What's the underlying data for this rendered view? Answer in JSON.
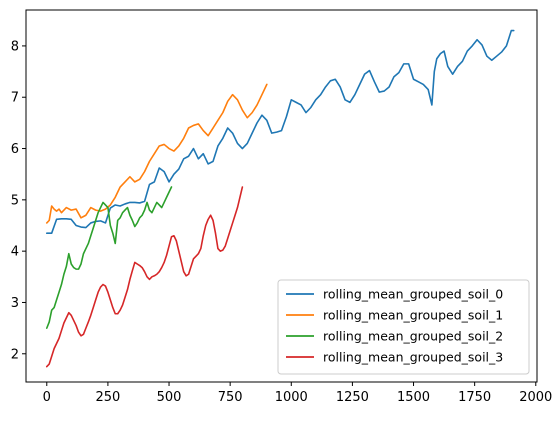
{
  "chart_data": {
    "type": "line",
    "title": "",
    "xlabel": "",
    "ylabel": "",
    "xlim": [
      -85,
      2005
    ],
    "ylim": [
      1.45,
      8.7
    ],
    "xticks": [
      0,
      250,
      500,
      750,
      1000,
      1250,
      1500,
      1750,
      2000
    ],
    "yticks": [
      2,
      3,
      4,
      5,
      6,
      7,
      8
    ],
    "grid": false,
    "legend_position": "lower-right",
    "series": [
      {
        "name": "rolling_mean_grouped_soil_0",
        "color": "#1f77b4",
        "points": [
          [
            0,
            4.35
          ],
          [
            20,
            4.35
          ],
          [
            40,
            4.62
          ],
          [
            60,
            4.63
          ],
          [
            80,
            4.63
          ],
          [
            100,
            4.62
          ],
          [
            120,
            4.5
          ],
          [
            140,
            4.47
          ],
          [
            160,
            4.46
          ],
          [
            180,
            4.55
          ],
          [
            200,
            4.58
          ],
          [
            220,
            4.59
          ],
          [
            240,
            4.55
          ],
          [
            260,
            4.84
          ],
          [
            280,
            4.9
          ],
          [
            300,
            4.88
          ],
          [
            320,
            4.92
          ],
          [
            340,
            4.95
          ],
          [
            360,
            4.95
          ],
          [
            380,
            4.94
          ],
          [
            400,
            4.97
          ],
          [
            420,
            5.3
          ],
          [
            440,
            5.35
          ],
          [
            460,
            5.62
          ],
          [
            480,
            5.55
          ],
          [
            500,
            5.35
          ],
          [
            520,
            5.5
          ],
          [
            540,
            5.6
          ],
          [
            560,
            5.8
          ],
          [
            580,
            5.85
          ],
          [
            600,
            6.0
          ],
          [
            620,
            5.8
          ],
          [
            640,
            5.9
          ],
          [
            660,
            5.7
          ],
          [
            680,
            5.75
          ],
          [
            700,
            6.05
          ],
          [
            720,
            6.2
          ],
          [
            740,
            6.4
          ],
          [
            760,
            6.3
          ],
          [
            780,
            6.1
          ],
          [
            800,
            6.0
          ],
          [
            820,
            6.1
          ],
          [
            840,
            6.3
          ],
          [
            860,
            6.5
          ],
          [
            880,
            6.65
          ],
          [
            900,
            6.55
          ],
          [
            920,
            6.3
          ],
          [
            940,
            6.32
          ],
          [
            960,
            6.35
          ],
          [
            980,
            6.62
          ],
          [
            1000,
            6.95
          ],
          [
            1020,
            6.9
          ],
          [
            1040,
            6.85
          ],
          [
            1060,
            6.7
          ],
          [
            1080,
            6.8
          ],
          [
            1100,
            6.95
          ],
          [
            1120,
            7.05
          ],
          [
            1140,
            7.2
          ],
          [
            1160,
            7.32
          ],
          [
            1180,
            7.35
          ],
          [
            1200,
            7.2
          ],
          [
            1220,
            6.95
          ],
          [
            1240,
            6.9
          ],
          [
            1260,
            7.05
          ],
          [
            1280,
            7.25
          ],
          [
            1300,
            7.45
          ],
          [
            1320,
            7.52
          ],
          [
            1340,
            7.3
          ],
          [
            1360,
            7.1
          ],
          [
            1380,
            7.12
          ],
          [
            1400,
            7.2
          ],
          [
            1420,
            7.4
          ],
          [
            1440,
            7.48
          ],
          [
            1460,
            7.65
          ],
          [
            1480,
            7.65
          ],
          [
            1500,
            7.35
          ],
          [
            1520,
            7.3
          ],
          [
            1540,
            7.25
          ],
          [
            1560,
            7.15
          ],
          [
            1575,
            6.85
          ],
          [
            1585,
            7.5
          ],
          [
            1595,
            7.75
          ],
          [
            1610,
            7.85
          ],
          [
            1625,
            7.9
          ],
          [
            1640,
            7.6
          ],
          [
            1660,
            7.45
          ],
          [
            1680,
            7.6
          ],
          [
            1700,
            7.7
          ],
          [
            1720,
            7.9
          ],
          [
            1740,
            8.0
          ],
          [
            1760,
            8.12
          ],
          [
            1780,
            8.02
          ],
          [
            1800,
            7.8
          ],
          [
            1820,
            7.72
          ],
          [
            1840,
            7.8
          ],
          [
            1860,
            7.88
          ],
          [
            1880,
            8.0
          ],
          [
            1900,
            8.3
          ],
          [
            1910,
            8.3
          ]
        ]
      },
      {
        "name": "rolling_mean_grouped_soil_1",
        "color": "#ff7f0e",
        "points": [
          [
            0,
            4.55
          ],
          [
            10,
            4.6
          ],
          [
            20,
            4.88
          ],
          [
            30,
            4.82
          ],
          [
            40,
            4.78
          ],
          [
            50,
            4.82
          ],
          [
            60,
            4.75
          ],
          [
            80,
            4.85
          ],
          [
            100,
            4.8
          ],
          [
            120,
            4.82
          ],
          [
            140,
            4.65
          ],
          [
            160,
            4.7
          ],
          [
            180,
            4.85
          ],
          [
            200,
            4.8
          ],
          [
            220,
            4.78
          ],
          [
            240,
            4.82
          ],
          [
            260,
            4.9
          ],
          [
            280,
            5.05
          ],
          [
            300,
            5.25
          ],
          [
            320,
            5.35
          ],
          [
            340,
            5.45
          ],
          [
            360,
            5.35
          ],
          [
            380,
            5.4
          ],
          [
            400,
            5.55
          ],
          [
            420,
            5.75
          ],
          [
            440,
            5.9
          ],
          [
            460,
            6.05
          ],
          [
            480,
            6.08
          ],
          [
            500,
            6.0
          ],
          [
            520,
            5.95
          ],
          [
            540,
            6.05
          ],
          [
            560,
            6.2
          ],
          [
            580,
            6.4
          ],
          [
            600,
            6.45
          ],
          [
            620,
            6.48
          ],
          [
            640,
            6.35
          ],
          [
            660,
            6.25
          ],
          [
            680,
            6.4
          ],
          [
            700,
            6.55
          ],
          [
            720,
            6.7
          ],
          [
            740,
            6.92
          ],
          [
            760,
            7.05
          ],
          [
            780,
            6.95
          ],
          [
            800,
            6.75
          ],
          [
            820,
            6.6
          ],
          [
            840,
            6.7
          ],
          [
            860,
            6.85
          ],
          [
            880,
            7.05
          ],
          [
            900,
            7.25
          ]
        ]
      },
      {
        "name": "rolling_mean_grouped_soil_2",
        "color": "#2ca02c",
        "points": [
          [
            0,
            2.5
          ],
          [
            10,
            2.62
          ],
          [
            20,
            2.85
          ],
          [
            30,
            2.9
          ],
          [
            40,
            3.05
          ],
          [
            50,
            3.2
          ],
          [
            60,
            3.35
          ],
          [
            70,
            3.55
          ],
          [
            80,
            3.7
          ],
          [
            90,
            3.95
          ],
          [
            100,
            3.75
          ],
          [
            110,
            3.68
          ],
          [
            120,
            3.65
          ],
          [
            130,
            3.65
          ],
          [
            140,
            3.75
          ],
          [
            150,
            3.95
          ],
          [
            160,
            4.05
          ],
          [
            170,
            4.15
          ],
          [
            180,
            4.3
          ],
          [
            190,
            4.45
          ],
          [
            200,
            4.6
          ],
          [
            210,
            4.75
          ],
          [
            220,
            4.85
          ],
          [
            230,
            4.95
          ],
          [
            240,
            4.9
          ],
          [
            250,
            4.85
          ],
          [
            260,
            4.5
          ],
          [
            270,
            4.35
          ],
          [
            280,
            4.15
          ],
          [
            290,
            4.6
          ],
          [
            300,
            4.65
          ],
          [
            310,
            4.75
          ],
          [
            320,
            4.8
          ],
          [
            330,
            4.85
          ],
          [
            340,
            4.7
          ],
          [
            350,
            4.6
          ],
          [
            360,
            4.48
          ],
          [
            370,
            4.55
          ],
          [
            380,
            4.65
          ],
          [
            390,
            4.7
          ],
          [
            400,
            4.8
          ],
          [
            410,
            4.95
          ],
          [
            420,
            4.8
          ],
          [
            430,
            4.75
          ],
          [
            440,
            4.85
          ],
          [
            450,
            4.95
          ],
          [
            460,
            4.9
          ],
          [
            470,
            4.85
          ],
          [
            480,
            4.95
          ],
          [
            490,
            5.05
          ],
          [
            500,
            5.15
          ],
          [
            510,
            5.25
          ]
        ]
      },
      {
        "name": "rolling_mean_grouped_soil_3",
        "color": "#d62728",
        "points": [
          [
            0,
            1.75
          ],
          [
            10,
            1.8
          ],
          [
            20,
            1.95
          ],
          [
            30,
            2.1
          ],
          [
            40,
            2.2
          ],
          [
            50,
            2.3
          ],
          [
            60,
            2.45
          ],
          [
            70,
            2.6
          ],
          [
            80,
            2.7
          ],
          [
            90,
            2.8
          ],
          [
            100,
            2.75
          ],
          [
            110,
            2.65
          ],
          [
            120,
            2.55
          ],
          [
            130,
            2.42
          ],
          [
            140,
            2.35
          ],
          [
            150,
            2.38
          ],
          [
            160,
            2.5
          ],
          [
            170,
            2.62
          ],
          [
            180,
            2.75
          ],
          [
            190,
            2.9
          ],
          [
            200,
            3.05
          ],
          [
            210,
            3.2
          ],
          [
            220,
            3.3
          ],
          [
            230,
            3.35
          ],
          [
            240,
            3.32
          ],
          [
            250,
            3.2
          ],
          [
            260,
            3.05
          ],
          [
            270,
            2.9
          ],
          [
            280,
            2.78
          ],
          [
            290,
            2.78
          ],
          [
            300,
            2.85
          ],
          [
            310,
            2.95
          ],
          [
            320,
            3.1
          ],
          [
            330,
            3.25
          ],
          [
            340,
            3.45
          ],
          [
            350,
            3.62
          ],
          [
            360,
            3.78
          ],
          [
            370,
            3.75
          ],
          [
            380,
            3.72
          ],
          [
            390,
            3.68
          ],
          [
            400,
            3.6
          ],
          [
            410,
            3.5
          ],
          [
            420,
            3.45
          ],
          [
            430,
            3.5
          ],
          [
            440,
            3.52
          ],
          [
            450,
            3.55
          ],
          [
            460,
            3.6
          ],
          [
            470,
            3.68
          ],
          [
            480,
            3.78
          ],
          [
            490,
            3.92
          ],
          [
            500,
            4.1
          ],
          [
            510,
            4.28
          ],
          [
            520,
            4.3
          ],
          [
            530,
            4.2
          ],
          [
            540,
            4.0
          ],
          [
            550,
            3.8
          ],
          [
            560,
            3.6
          ],
          [
            570,
            3.52
          ],
          [
            580,
            3.55
          ],
          [
            590,
            3.7
          ],
          [
            600,
            3.85
          ],
          [
            610,
            3.9
          ],
          [
            620,
            3.95
          ],
          [
            630,
            4.05
          ],
          [
            640,
            4.3
          ],
          [
            650,
            4.5
          ],
          [
            660,
            4.62
          ],
          [
            670,
            4.7
          ],
          [
            680,
            4.6
          ],
          [
            690,
            4.35
          ],
          [
            700,
            4.05
          ],
          [
            710,
            4.0
          ],
          [
            720,
            4.02
          ],
          [
            730,
            4.1
          ],
          [
            740,
            4.25
          ],
          [
            750,
            4.4
          ],
          [
            760,
            4.55
          ],
          [
            770,
            4.7
          ],
          [
            780,
            4.85
          ],
          [
            790,
            5.05
          ],
          [
            800,
            5.25
          ]
        ]
      }
    ]
  }
}
